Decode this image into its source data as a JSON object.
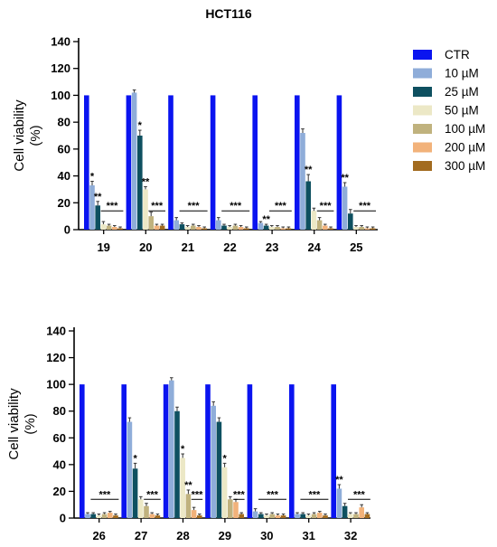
{
  "chart_data": {
    "type": "bar",
    "title": "HCT116",
    "ylabel_line1": "Cell viability",
    "ylabel_line2": "(%)",
    "ylim": [
      0,
      140
    ],
    "yticks": [
      0,
      20,
      40,
      60,
      80,
      100,
      120,
      140
    ],
    "legend_placement": "top-right",
    "series": [
      {
        "name": "CTR",
        "color": "#0a14f0"
      },
      {
        "name": "10 µM",
        "color": "#8fadd9"
      },
      {
        "name": "25 µM",
        "color": "#0e5060"
      },
      {
        "name": "50 µM",
        "color": "#ece8c6"
      },
      {
        "name": "100 µM",
        "color": "#c0b27e"
      },
      {
        "name": "200 µM",
        "color": "#f2b27a"
      },
      {
        "name": "300 µM",
        "color": "#a26b1f"
      }
    ],
    "panels": [
      {
        "categories": [
          "19",
          "20",
          "21",
          "22",
          "23",
          "24",
          "25"
        ],
        "values": [
          [
            100,
            33,
            18,
            4,
            3,
            2,
            1
          ],
          [
            100,
            102,
            70,
            30,
            10,
            3,
            3
          ],
          [
            100,
            7,
            4,
            2,
            3,
            2,
            1
          ],
          [
            100,
            7,
            3,
            2,
            3,
            2,
            1
          ],
          [
            100,
            5,
            3,
            2,
            2,
            1,
            1
          ],
          [
            100,
            72,
            36,
            14,
            7,
            3,
            1
          ],
          [
            100,
            32,
            12,
            2,
            2,
            1,
            1
          ]
        ],
        "errors": [
          [
            0,
            3,
            3,
            2,
            1,
            1,
            1
          ],
          [
            0,
            2,
            4,
            2,
            3,
            1,
            1
          ],
          [
            0,
            2,
            1,
            1,
            1,
            1,
            1
          ],
          [
            0,
            2,
            1,
            1,
            1,
            1,
            1
          ],
          [
            0,
            1,
            1,
            1,
            1,
            1,
            1
          ],
          [
            0,
            3,
            5,
            2,
            2,
            1,
            1
          ],
          [
            0,
            3,
            3,
            1,
            1,
            1,
            1
          ]
        ],
        "annotations": [
          {
            "cat": 0,
            "bar": 1,
            "text": "*"
          },
          {
            "cat": 0,
            "bar": 2,
            "text": "**"
          },
          {
            "cat": 1,
            "bar": 2,
            "text": "*"
          },
          {
            "cat": 1,
            "bar": 3,
            "text": "**"
          },
          {
            "cat": 4,
            "bar": 2,
            "text": "**"
          },
          {
            "cat": 5,
            "bar": 2,
            "text": "**"
          },
          {
            "cat": 6,
            "bar": 1,
            "text": "**"
          }
        ],
        "sigbrackets": [
          {
            "cat": 0,
            "from": 3,
            "to": 6,
            "text": "***"
          },
          {
            "cat": 1,
            "from": 4,
            "to": 6,
            "text": "***"
          },
          {
            "cat": 2,
            "from": 2,
            "to": 6,
            "text": "***"
          },
          {
            "cat": 3,
            "from": 2,
            "to": 6,
            "text": "***"
          },
          {
            "cat": 4,
            "from": 3,
            "to": 6,
            "text": "***"
          },
          {
            "cat": 5,
            "from": 4,
            "to": 6,
            "text": "***"
          },
          {
            "cat": 6,
            "from": 3,
            "to": 6,
            "text": "***"
          }
        ]
      },
      {
        "categories": [
          "26",
          "27",
          "28",
          "29",
          "30",
          "31",
          "32"
        ],
        "values": [
          [
            100,
            3,
            3,
            2,
            3,
            4,
            2
          ],
          [
            100,
            72,
            37,
            14,
            9,
            3,
            2
          ],
          [
            100,
            103,
            80,
            45,
            18,
            6,
            2
          ],
          [
            100,
            84,
            72,
            38,
            14,
            12,
            3
          ],
          [
            100,
            5,
            3,
            2,
            3,
            2,
            2
          ],
          [
            100,
            3,
            3,
            2,
            3,
            4,
            2
          ],
          [
            100,
            22,
            9,
            3,
            3,
            8,
            3
          ]
        ],
        "errors": [
          [
            0,
            1,
            1,
            1,
            1,
            1,
            1
          ],
          [
            0,
            3,
            4,
            2,
            2,
            1,
            1
          ],
          [
            0,
            2,
            3,
            3,
            3,
            2,
            1
          ],
          [
            0,
            3,
            3,
            3,
            2,
            2,
            1
          ],
          [
            0,
            2,
            1,
            1,
            1,
            1,
            1
          ],
          [
            0,
            1,
            1,
            1,
            1,
            1,
            1
          ],
          [
            0,
            3,
            2,
            1,
            1,
            2,
            1
          ]
        ],
        "annotations": [
          {
            "cat": 1,
            "bar": 2,
            "text": "*"
          },
          {
            "cat": 2,
            "bar": 3,
            "text": "*"
          },
          {
            "cat": 2,
            "bar": 4,
            "text": "**"
          },
          {
            "cat": 3,
            "bar": 3,
            "text": "*"
          },
          {
            "cat": 6,
            "bar": 1,
            "text": "**"
          }
        ],
        "sigbrackets": [
          {
            "cat": 0,
            "from": 2,
            "to": 6,
            "text": "***"
          },
          {
            "cat": 1,
            "from": 4,
            "to": 6,
            "text": "***"
          },
          {
            "cat": 2,
            "from": 5,
            "to": 6,
            "text": "***"
          },
          {
            "cat": 3,
            "from": 5,
            "to": 6,
            "text": "***"
          },
          {
            "cat": 4,
            "from": 2,
            "to": 6,
            "text": "***"
          },
          {
            "cat": 5,
            "from": 2,
            "to": 6,
            "text": "***"
          },
          {
            "cat": 6,
            "from": 3,
            "to": 6,
            "text": "***"
          }
        ]
      }
    ]
  }
}
